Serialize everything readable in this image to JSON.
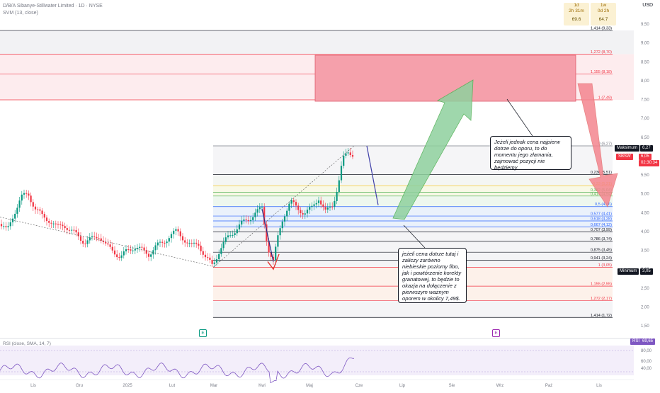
{
  "header": {
    "symbol_line": "D/B/A Sibanye-Stillwater Limited · 1D · NYSE",
    "indicator_line": "SVM (13, close)",
    "currency": "USD"
  },
  "timeframes": [
    {
      "label": "1d",
      "time": "2h 31m",
      "value": "69.6"
    },
    {
      "label": "1w",
      "time": "0d 2h",
      "value": "64.7"
    }
  ],
  "chart_data": {
    "type": "candlestick",
    "y_axis_ticks": [
      "9,50",
      "9,00",
      "8,50",
      "8,00",
      "7,50",
      "7,00",
      "6,50",
      "6,00",
      "5,50",
      "5,00",
      "4,50",
      "4,00",
      "3,50",
      "3,00",
      "2,50",
      "2,00",
      "1,50"
    ],
    "x_axis_labels": [
      "Lis",
      "Gru",
      "2025",
      "Lut",
      "Mar",
      "Kwi",
      "Maj",
      "Cze",
      "Lip",
      "Sie",
      "Wrz",
      "Paź",
      "Lis"
    ],
    "fib_levels": [
      {
        "label": "1,414 (9,33)",
        "value": 9.33,
        "color": "#131722"
      },
      {
        "label": "1,272 (8,70)",
        "value": 8.7,
        "color": "#f23645"
      },
      {
        "label": "1,155 (8,18)",
        "value": 8.18,
        "color": "#f23645"
      },
      {
        "label": "1 (7,49)",
        "value": 7.49,
        "color": "#f23645"
      },
      {
        "label": "0 (6,27)",
        "value": 6.27,
        "color": "#787b86"
      },
      {
        "label": "0,236 (5,51)",
        "value": 5.51,
        "color": "#131722"
      },
      {
        "label": "0,33 (5,21)",
        "value": 5.21,
        "color": "#f5c10a"
      },
      {
        "label": "0,382 (5,04)",
        "value": 5.04,
        "color": "#4caf50"
      },
      {
        "label": "0,414 (4,94)",
        "value": 4.94,
        "color": "#4caf50"
      },
      {
        "label": "0,5 (4,66)",
        "value": 4.66,
        "color": "#2962ff"
      },
      {
        "label": "0,577 (4,41)",
        "value": 4.41,
        "color": "#2962ff"
      },
      {
        "label": "0,618 (4,28)",
        "value": 4.28,
        "color": "#2962ff"
      },
      {
        "label": "0,667 (4,12)",
        "value": 4.12,
        "color": "#2962ff"
      },
      {
        "label": "0,707 (3,99)",
        "value": 3.99,
        "color": "#131722"
      },
      {
        "label": "0,786 (3,74)",
        "value": 3.74,
        "color": "#131722"
      },
      {
        "label": "0,875 (3,45)",
        "value": 3.45,
        "color": "#131722"
      },
      {
        "label": "0,941 (3,24)",
        "value": 3.24,
        "color": "#131722"
      },
      {
        "label": "1 (3,05)",
        "value": 3.05,
        "color": "#f23645"
      },
      {
        "label": "1,155 (2,55)",
        "value": 2.55,
        "color": "#f23645"
      },
      {
        "label": "1,272 (2,17)",
        "value": 2.17,
        "color": "#f23645"
      },
      {
        "label": "1,414 (1,72)",
        "value": 1.72,
        "color": "#131722"
      }
    ],
    "markers": {
      "max_label": "Maksimum",
      "max_value": "6,27",
      "min_label": "Minimum",
      "min_value": "3,05",
      "price_tag": "SBSW",
      "price_value": "6,05",
      "countdown": "02:30:34"
    },
    "rsi": {
      "label": "RSI (close, SMA, 14, 7)",
      "tag": "RSI",
      "value": "69,65",
      "ticks": [
        "80,00",
        "60,00",
        "40,00"
      ]
    }
  },
  "annotations": {
    "resistance_note": "Jeżeli jednak cena najpierw dotrze do oporu, to do momentu jego złamania, zajmować pozycji nie będziemy",
    "support_note": "jeżeli cena dotrze tutaj i zaliczy zarówno niebieskie poziomy fibo, jak i powtórzenie korekty granatowej, to będzie to okazja na dołączenie z pierwszym ważnym oporem w okolicy 7,49$."
  },
  "earnings_badge": "E"
}
